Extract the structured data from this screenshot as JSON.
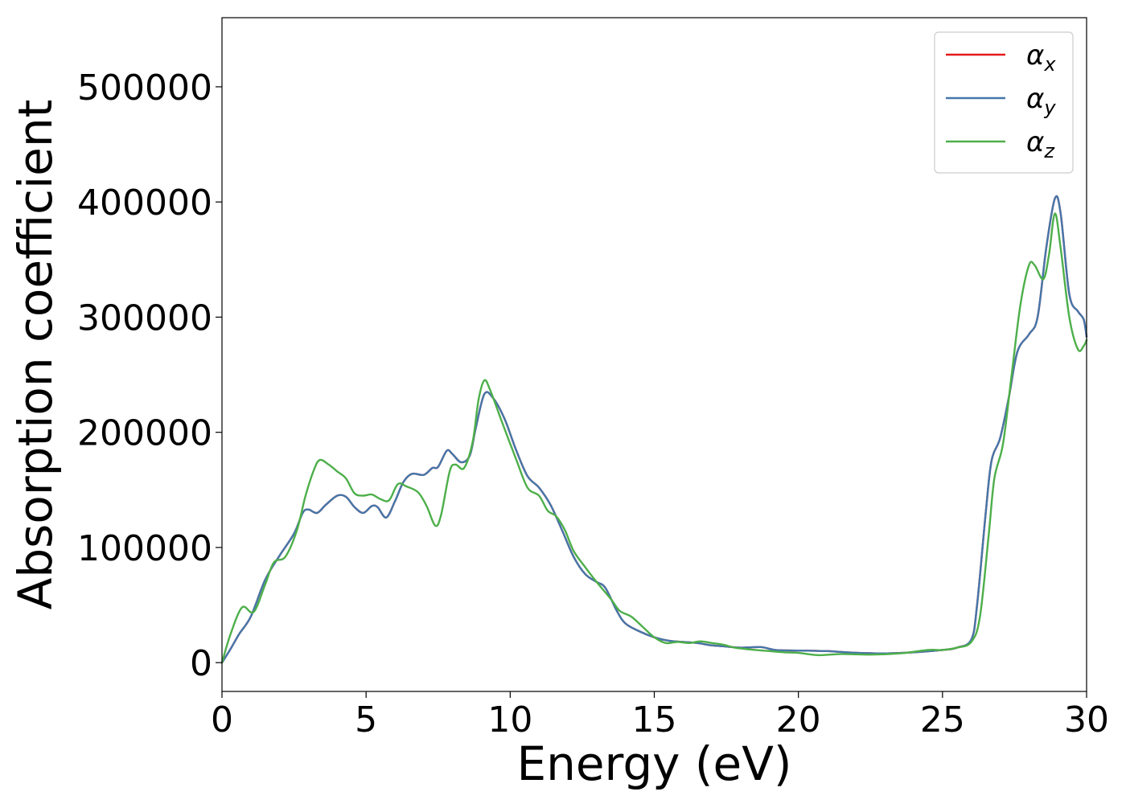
{
  "chart_data": {
    "type": "line",
    "title": "",
    "xlabel": "Energy (eV)",
    "ylabel": "Absorption coefficient",
    "xlim": [
      0,
      30
    ],
    "ylim": [
      -25000,
      560000
    ],
    "xticks": [
      0,
      5,
      10,
      15,
      20,
      25,
      30
    ],
    "xtick_labels": [
      "0",
      "5",
      "10",
      "15",
      "20",
      "25",
      "30"
    ],
    "yticks": [
      0,
      100000,
      200000,
      300000,
      400000,
      500000
    ],
    "ytick_labels": [
      "0",
      "100000",
      "200000",
      "300000",
      "400000",
      "500000"
    ],
    "grid": false,
    "legend_position": "top-right",
    "series": [
      {
        "name": "αx",
        "legend_symbol": "α",
        "legend_sub": "x",
        "color": "#e41a1c",
        "points": [
          [
            0,
            0
          ],
          [
            0.3,
            12000
          ],
          [
            0.6,
            25000
          ],
          [
            1.0,
            40000
          ],
          [
            1.5,
            72000
          ],
          [
            2.0,
            93000
          ],
          [
            2.5,
            112000
          ],
          [
            2.8,
            130000
          ],
          [
            3.0,
            133000
          ],
          [
            3.3,
            130000
          ],
          [
            3.6,
            137000
          ],
          [
            4.0,
            145000
          ],
          [
            4.3,
            144000
          ],
          [
            4.6,
            135000
          ],
          [
            4.9,
            130000
          ],
          [
            5.2,
            136000
          ],
          [
            5.4,
            135000
          ],
          [
            5.7,
            126000
          ],
          [
            6.0,
            140000
          ],
          [
            6.3,
            157000
          ],
          [
            6.6,
            164000
          ],
          [
            7.0,
            163000
          ],
          [
            7.3,
            169000
          ],
          [
            7.5,
            170000
          ],
          [
            7.8,
            184000
          ],
          [
            8.0,
            181000
          ],
          [
            8.3,
            174000
          ],
          [
            8.6,
            180000
          ],
          [
            8.8,
            203000
          ],
          [
            9.1,
            233000
          ],
          [
            9.4,
            230000
          ],
          [
            9.8,
            212000
          ],
          [
            10.2,
            185000
          ],
          [
            10.6,
            162000
          ],
          [
            11.0,
            152000
          ],
          [
            11.4,
            137000
          ],
          [
            11.8,
            115000
          ],
          [
            12.2,
            92000
          ],
          [
            12.6,
            77000
          ],
          [
            13.0,
            70000
          ],
          [
            13.3,
            65000
          ],
          [
            13.7,
            45000
          ],
          [
            14.0,
            34000
          ],
          [
            14.5,
            27000
          ],
          [
            15.0,
            22000
          ],
          [
            15.5,
            19000
          ],
          [
            16.0,
            18000
          ],
          [
            16.5,
            17000
          ],
          [
            17.0,
            15000
          ],
          [
            17.5,
            14000
          ],
          [
            18.0,
            13000
          ],
          [
            18.7,
            13500
          ],
          [
            19.2,
            11000
          ],
          [
            20.0,
            10500
          ],
          [
            21.0,
            10000
          ],
          [
            22.0,
            8500
          ],
          [
            23.0,
            8000
          ],
          [
            24.0,
            9000
          ],
          [
            25.0,
            11000
          ],
          [
            25.5,
            13000
          ],
          [
            26.0,
            20000
          ],
          [
            26.2,
            50000
          ],
          [
            26.5,
            130000
          ],
          [
            26.7,
            175000
          ],
          [
            27.0,
            195000
          ],
          [
            27.3,
            230000
          ],
          [
            27.6,
            270000
          ],
          [
            28.0,
            285000
          ],
          [
            28.3,
            300000
          ],
          [
            28.6,
            360000
          ],
          [
            28.9,
            403000
          ],
          [
            29.1,
            390000
          ],
          [
            29.4,
            320000
          ],
          [
            29.7,
            305000
          ],
          [
            29.9,
            298000
          ],
          [
            30.0,
            283000
          ]
        ]
      },
      {
        "name": "αy",
        "legend_symbol": "α",
        "legend_sub": "y",
        "color": "#4477aa",
        "points": [
          [
            0,
            0
          ],
          [
            0.3,
            12000
          ],
          [
            0.6,
            25000
          ],
          [
            1.0,
            40000
          ],
          [
            1.5,
            72000
          ],
          [
            2.0,
            93000
          ],
          [
            2.5,
            112000
          ],
          [
            2.8,
            130000
          ],
          [
            3.0,
            133000
          ],
          [
            3.3,
            130000
          ],
          [
            3.6,
            137000
          ],
          [
            4.0,
            145000
          ],
          [
            4.3,
            144000
          ],
          [
            4.6,
            135000
          ],
          [
            4.9,
            130000
          ],
          [
            5.2,
            136000
          ],
          [
            5.4,
            135000
          ],
          [
            5.7,
            126000
          ],
          [
            6.0,
            140000
          ],
          [
            6.3,
            157000
          ],
          [
            6.6,
            164000
          ],
          [
            7.0,
            163000
          ],
          [
            7.3,
            169000
          ],
          [
            7.5,
            170000
          ],
          [
            7.8,
            184000
          ],
          [
            8.0,
            181000
          ],
          [
            8.3,
            174000
          ],
          [
            8.6,
            180000
          ],
          [
            8.8,
            203000
          ],
          [
            9.1,
            233000
          ],
          [
            9.4,
            230000
          ],
          [
            9.8,
            212000
          ],
          [
            10.2,
            185000
          ],
          [
            10.6,
            162000
          ],
          [
            11.0,
            152000
          ],
          [
            11.4,
            137000
          ],
          [
            11.8,
            115000
          ],
          [
            12.2,
            92000
          ],
          [
            12.6,
            77000
          ],
          [
            13.0,
            70000
          ],
          [
            13.3,
            65000
          ],
          [
            13.7,
            45000
          ],
          [
            14.0,
            34000
          ],
          [
            14.5,
            27000
          ],
          [
            15.0,
            22000
          ],
          [
            15.5,
            19000
          ],
          [
            16.0,
            18000
          ],
          [
            16.5,
            17000
          ],
          [
            17.0,
            15000
          ],
          [
            17.5,
            14000
          ],
          [
            18.0,
            13000
          ],
          [
            18.7,
            13500
          ],
          [
            19.2,
            11000
          ],
          [
            20.0,
            10500
          ],
          [
            21.0,
            10000
          ],
          [
            22.0,
            8500
          ],
          [
            23.0,
            8000
          ],
          [
            24.0,
            9000
          ],
          [
            25.0,
            11000
          ],
          [
            25.5,
            13000
          ],
          [
            26.0,
            20000
          ],
          [
            26.2,
            50000
          ],
          [
            26.5,
            130000
          ],
          [
            26.7,
            175000
          ],
          [
            27.0,
            195000
          ],
          [
            27.3,
            230000
          ],
          [
            27.6,
            270000
          ],
          [
            28.0,
            285000
          ],
          [
            28.3,
            300000
          ],
          [
            28.6,
            360000
          ],
          [
            28.9,
            403000
          ],
          [
            29.1,
            390000
          ],
          [
            29.4,
            320000
          ],
          [
            29.7,
            305000
          ],
          [
            29.9,
            298000
          ],
          [
            30.0,
            283000
          ]
        ]
      },
      {
        "name": "αz",
        "legend_symbol": "α",
        "legend_sub": "z",
        "color": "#4daf4a",
        "points": [
          [
            0,
            0
          ],
          [
            0.3,
            25000
          ],
          [
            0.7,
            48000
          ],
          [
            1.1,
            44000
          ],
          [
            1.5,
            68000
          ],
          [
            1.8,
            87000
          ],
          [
            2.2,
            92000
          ],
          [
            2.6,
            115000
          ],
          [
            2.9,
            145000
          ],
          [
            3.2,
            168000
          ],
          [
            3.4,
            176000
          ],
          [
            3.7,
            172000
          ],
          [
            4.0,
            166000
          ],
          [
            4.3,
            160000
          ],
          [
            4.6,
            147000
          ],
          [
            4.9,
            145000
          ],
          [
            5.2,
            146000
          ],
          [
            5.5,
            142000
          ],
          [
            5.8,
            141000
          ],
          [
            6.1,
            155000
          ],
          [
            6.4,
            153000
          ],
          [
            6.8,
            148000
          ],
          [
            7.1,
            136000
          ],
          [
            7.4,
            119000
          ],
          [
            7.6,
            128000
          ],
          [
            7.9,
            166000
          ],
          [
            8.1,
            172000
          ],
          [
            8.4,
            169000
          ],
          [
            8.7,
            192000
          ],
          [
            8.9,
            228000
          ],
          [
            9.1,
            245000
          ],
          [
            9.3,
            237000
          ],
          [
            9.7,
            210000
          ],
          [
            10.2,
            177000
          ],
          [
            10.6,
            152000
          ],
          [
            11.0,
            145000
          ],
          [
            11.3,
            132000
          ],
          [
            11.6,
            127000
          ],
          [
            11.9,
            115000
          ],
          [
            12.2,
            97000
          ],
          [
            12.6,
            83000
          ],
          [
            13.0,
            70000
          ],
          [
            13.5,
            55000
          ],
          [
            13.8,
            45000
          ],
          [
            14.2,
            40000
          ],
          [
            14.6,
            31000
          ],
          [
            15.0,
            22000
          ],
          [
            15.4,
            17000
          ],
          [
            15.8,
            18000
          ],
          [
            16.2,
            17000
          ],
          [
            16.6,
            18500
          ],
          [
            17.0,
            17000
          ],
          [
            17.4,
            15500
          ],
          [
            17.8,
            13000
          ],
          [
            18.3,
            11500
          ],
          [
            19.0,
            10000
          ],
          [
            19.5,
            9000
          ],
          [
            20.0,
            8500
          ],
          [
            20.7,
            6500
          ],
          [
            21.5,
            7500
          ],
          [
            22.5,
            7000
          ],
          [
            23.5,
            8000
          ],
          [
            24.5,
            11000
          ],
          [
            25.0,
            11000
          ],
          [
            25.5,
            13000
          ],
          [
            26.0,
            18000
          ],
          [
            26.3,
            40000
          ],
          [
            26.6,
            110000
          ],
          [
            26.8,
            160000
          ],
          [
            27.1,
            190000
          ],
          [
            27.4,
            250000
          ],
          [
            27.7,
            310000
          ],
          [
            28.0,
            345000
          ],
          [
            28.2,
            345000
          ],
          [
            28.5,
            333000
          ],
          [
            28.7,
            355000
          ],
          [
            28.9,
            390000
          ],
          [
            29.1,
            360000
          ],
          [
            29.4,
            300000
          ],
          [
            29.7,
            272000
          ],
          [
            29.9,
            275000
          ],
          [
            30.0,
            280000
          ]
        ]
      }
    ]
  }
}
